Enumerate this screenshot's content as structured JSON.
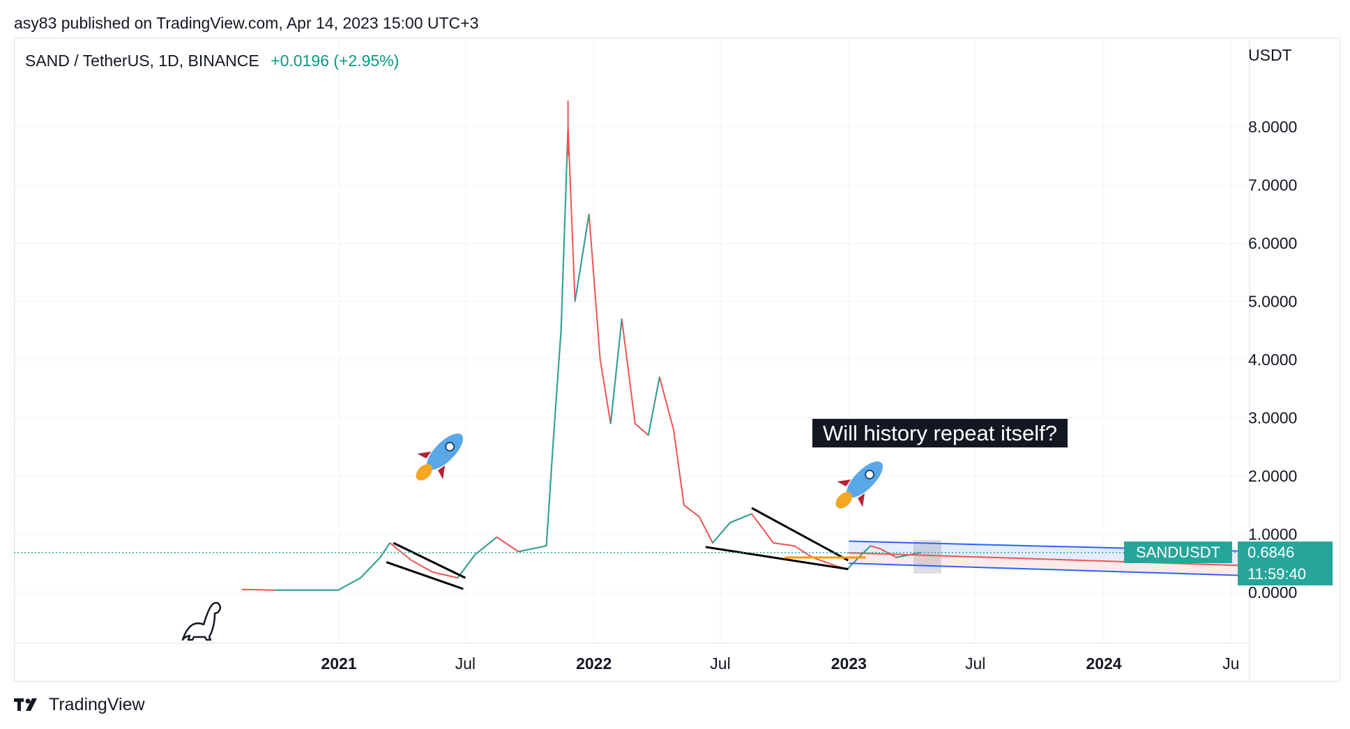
{
  "header": {
    "published_line": "asy83 published on TradingView.com, Apr 14, 2023 15:00 UTC+3"
  },
  "symbol": {
    "title": "SAND / TetherUS, 1D, BINANCE",
    "change": "+0.0196 (+2.95%)"
  },
  "annotation": {
    "callout_text": "Will history repeat itself?"
  },
  "price_axis": {
    "unit": "USDT",
    "current_symbol_tag": "SANDUSDT",
    "current_price_tag": "0.6846",
    "countdown_tag": "11:59:40"
  },
  "footer": {
    "brand": "TradingView"
  },
  "colors": {
    "up": "#26a69a",
    "down": "#ef5350",
    "accent": "#2962ff",
    "annotation_line": "#000000",
    "horizontal_level": "#ff9800"
  },
  "chart_data": {
    "type": "candlestick",
    "title": "SAND / TetherUS, 1D, BINANCE",
    "ylabel": "USDT",
    "ylim": [
      -0.85,
      8.9
    ],
    "y_ticks": [
      "0.0000",
      "1.0000",
      "2.0000",
      "3.0000",
      "4.0000",
      "5.0000",
      "6.0000",
      "7.0000",
      "8.0000"
    ],
    "x_ticks": [
      "2021",
      "Jul",
      "2022",
      "Jul",
      "2023",
      "Jul",
      "2024",
      "Ju"
    ],
    "x_bold_ticks": [
      "2021",
      "2022",
      "2023",
      "2024"
    ],
    "last_price": 0.6846,
    "price_points": [
      {
        "date": "2020-08-15",
        "close": 0.05
      },
      {
        "date": "2020-10-01",
        "close": 0.04
      },
      {
        "date": "2020-12-31",
        "close": 0.04
      },
      {
        "date": "2021-02-01",
        "close": 0.25
      },
      {
        "date": "2021-03-01",
        "close": 0.6
      },
      {
        "date": "2021-03-15",
        "close": 0.85
      },
      {
        "date": "2021-04-15",
        "close": 0.55
      },
      {
        "date": "2021-05-15",
        "close": 0.35
      },
      {
        "date": "2021-06-20",
        "close": 0.25
      },
      {
        "date": "2021-07-15",
        "close": 0.65
      },
      {
        "date": "2021-08-15",
        "close": 0.95
      },
      {
        "date": "2021-09-15",
        "close": 0.7
      },
      {
        "date": "2021-10-25",
        "close": 0.8
      },
      {
        "date": "2021-11-05",
        "close": 2.8
      },
      {
        "date": "2021-11-15",
        "close": 4.5
      },
      {
        "date": "2021-11-25",
        "close": 8.0
      },
      {
        "date": "2021-12-05",
        "close": 5.0
      },
      {
        "date": "2021-12-25",
        "close": 6.5
      },
      {
        "date": "2022-01-10",
        "close": 4.0
      },
      {
        "date": "2022-01-25",
        "close": 2.9
      },
      {
        "date": "2022-02-10",
        "close": 4.7
      },
      {
        "date": "2022-03-01",
        "close": 2.9
      },
      {
        "date": "2022-03-20",
        "close": 2.7
      },
      {
        "date": "2022-04-05",
        "close": 3.7
      },
      {
        "date": "2022-04-25",
        "close": 2.8
      },
      {
        "date": "2022-05-10",
        "close": 1.5
      },
      {
        "date": "2022-06-01",
        "close": 1.3
      },
      {
        "date": "2022-06-20",
        "close": 0.85
      },
      {
        "date": "2022-07-15",
        "close": 1.2
      },
      {
        "date": "2022-08-15",
        "close": 1.35
      },
      {
        "date": "2022-09-15",
        "close": 0.85
      },
      {
        "date": "2022-10-15",
        "close": 0.8
      },
      {
        "date": "2022-11-10",
        "close": 0.6
      },
      {
        "date": "2022-12-15",
        "close": 0.45
      },
      {
        "date": "2022-12-30",
        "close": 0.4
      },
      {
        "date": "2023-01-15",
        "close": 0.6
      },
      {
        "date": "2023-02-01",
        "close": 0.8
      },
      {
        "date": "2023-02-15",
        "close": 0.75
      },
      {
        "date": "2023-03-10",
        "close": 0.6
      },
      {
        "date": "2023-04-14",
        "close": 0.6846
      }
    ],
    "drawings": {
      "falling_wedge_2021": [
        {
          "from": {
            "date": "2021-03-20",
            "value": 0.85
          },
          "to": {
            "date": "2021-07-01",
            "value": 0.25
          }
        },
        {
          "from": {
            "date": "2021-03-10",
            "value": 0.52
          },
          "to": {
            "date": "2021-06-28",
            "value": 0.06
          }
        }
      ],
      "falling_wedge_2022": [
        {
          "from": {
            "date": "2022-08-15",
            "value": 1.45
          },
          "to": {
            "date": "2022-12-31",
            "value": 0.55
          }
        },
        {
          "from": {
            "date": "2022-06-10",
            "value": 0.78
          },
          "to": {
            "date": "2022-12-31",
            "value": 0.4
          }
        }
      ],
      "horizontal_level": {
        "value": 0.6,
        "from": "2022-10-01",
        "to": "2023-01-25"
      },
      "projection_channel": {
        "top": {
          "from": {
            "date": "2023-01-01",
            "value": 0.88
          },
          "to": {
            "date": "2024-08-15",
            "value": 0.7
          }
        },
        "middle": {
          "from": {
            "date": "2023-01-01",
            "value": 0.68
          },
          "to": {
            "date": "2024-08-15",
            "value": 0.45
          }
        },
        "bottom": {
          "from": {
            "date": "2023-01-01",
            "value": 0.5
          },
          "to": {
            "date": "2024-08-15",
            "value": 0.28
          }
        }
      }
    }
  }
}
